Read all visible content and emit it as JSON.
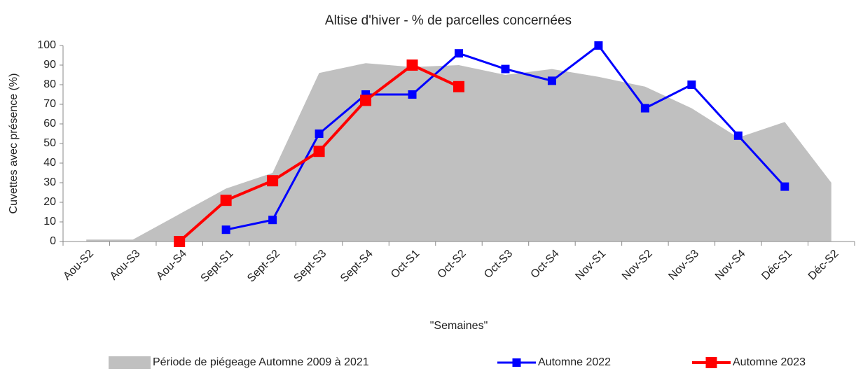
{
  "chart_data": {
    "type": "line",
    "title": "Altise d'hiver - % de parcelles concernées",
    "x_label": "\"Semaines\"",
    "y_label": "Cuvettes avec présence (%)",
    "categories": [
      "Aou-S2",
      "Aou-S3",
      "Aou-S4",
      "Sept-S1",
      "Sept-S2",
      "Sept-S3",
      "Sept-S4",
      "Oct-S1",
      "Oct-S2",
      "Oct-S3",
      "Oct-S4",
      "Nov-S1",
      "Nov-S2",
      "Nov-S3",
      "Nov-S4",
      "Déc-S1",
      "Déc-S2"
    ],
    "ylim": [
      0,
      100
    ],
    "yticks": [
      0,
      10,
      20,
      30,
      40,
      50,
      60,
      70,
      80,
      90,
      100
    ],
    "grid": false,
    "legend": "bottom",
    "series": [
      {
        "name": "Période de piégeage Automne 2009 à 2021",
        "color": "#c0c0c0",
        "fill": true,
        "values": [
          1,
          1,
          14,
          27,
          35,
          86,
          91,
          89,
          90,
          85,
          88,
          84,
          79,
          68,
          53,
          61,
          30
        ]
      },
      {
        "name": "Automne 2022",
        "color": "#0000ff",
        "fill": false,
        "values": [
          null,
          null,
          null,
          6,
          11,
          55,
          75,
          75,
          96,
          88,
          82,
          100,
          68,
          80,
          54,
          28,
          null
        ]
      },
      {
        "name": "Automne 2023",
        "color": "#ff0000",
        "fill": false,
        "values": [
          null,
          null,
          0,
          21,
          31,
          46,
          72,
          90,
          79,
          null,
          null,
          null,
          null,
          null,
          null,
          null,
          null
        ]
      }
    ]
  }
}
